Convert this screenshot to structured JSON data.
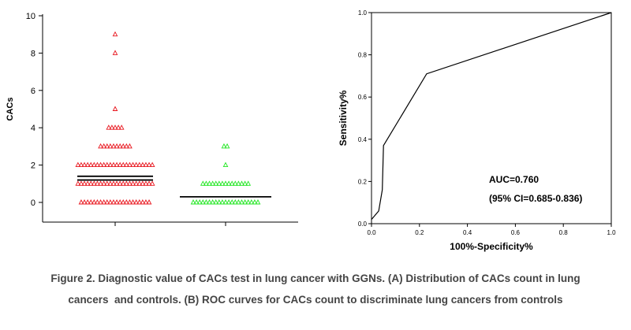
{
  "caption": {
    "line1": "Figure 2. Diagnostic value of CACs test in lung cancer with GGNs. (A) Distribution of CACs count in lung",
    "line2": "cancers  and controls. (B) ROC curves for CACs count to discriminate lung cancers from controls"
  },
  "colors": {
    "cancer": "#e8141c",
    "control": "#1ee61e",
    "axis": "#000000",
    "mean_line": "#000000"
  },
  "chart_data": [
    {
      "type": "scatter",
      "subtype": "dot-plot",
      "ylabel": "CACs",
      "xlabel": "",
      "ylim": [
        0,
        10
      ],
      "yticks": [
        0,
        2,
        4,
        6,
        8,
        10
      ],
      "marker": "triangle-outline",
      "groups": [
        {
          "color": "#e8141c",
          "values": {
            "0": 22,
            "1": 24,
            "2": 24,
            "3": 10,
            "4": 5,
            "5": 1,
            "8": 1,
            "9": 1
          },
          "mean": 1.4,
          "second_line": 1.2
        },
        {
          "color": "#1ee61e",
          "values": {
            "0": 21,
            "1": 15,
            "2": 1,
            "3": 2
          },
          "mean": 0.3
        }
      ]
    },
    {
      "type": "line",
      "subtype": "roc",
      "xlabel": "100%-Specificity%",
      "ylabel": "Sensitivity%",
      "xlim": [
        0,
        1
      ],
      "ylim": [
        0,
        1
      ],
      "xticks": [
        "0.0",
        "0.2",
        "0.4",
        "0.6",
        "0.8",
        "1.0"
      ],
      "yticks": [
        "0.0",
        "0.2",
        "0.4",
        "0.6",
        "0.8",
        "1.0"
      ],
      "x": [
        0.0,
        0.03,
        0.045,
        0.05,
        0.23,
        1.0
      ],
      "y": [
        0.02,
        0.06,
        0.16,
        0.37,
        0.71,
        1.0
      ],
      "annotations": [
        "AUC=0.760",
        "(95% CI=0.685-0.836)"
      ]
    }
  ]
}
